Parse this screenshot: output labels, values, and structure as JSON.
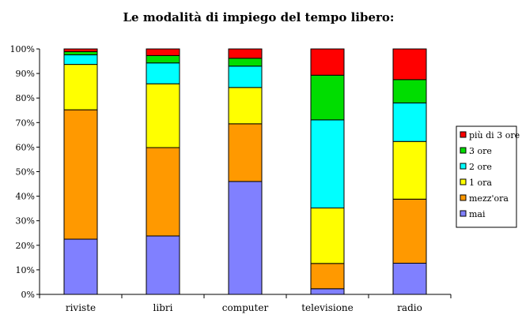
{
  "chart_data": {
    "type": "bar",
    "stacked": true,
    "percent": true,
    "title": "Le modalità di impiego del tempo libero:",
    "categories": [
      "riviste",
      "libri",
      "computer",
      "televisione",
      "radio"
    ],
    "ylim": [
      0,
      100
    ],
    "yticks": [
      "0%",
      "10%",
      "20%",
      "30%",
      "40%",
      "50%",
      "60%",
      "70%",
      "80%",
      "90%",
      "100%"
    ],
    "grid": false,
    "legend_position": "right",
    "series": [
      {
        "name": "mai",
        "color": "#8080ff",
        "values": [
          22.5,
          23.8,
          46.0,
          2.3,
          12.7
        ]
      },
      {
        "name": "mezz'ora",
        "color": "#ff9900",
        "values": [
          52.7,
          36.0,
          23.5,
          10.3,
          26.1
        ]
      },
      {
        "name": "1 ora",
        "color": "#ffff00",
        "values": [
          18.5,
          26.0,
          14.8,
          22.6,
          23.5
        ]
      },
      {
        "name": "2 ore",
        "color": "#00ffff",
        "values": [
          3.9,
          8.5,
          8.7,
          35.9,
          15.7
        ]
      },
      {
        "name": "3 ore",
        "color": "#00dd00",
        "values": [
          1.3,
          3.0,
          3.2,
          18.2,
          9.5
        ]
      },
      {
        "name": "più di 3 ore",
        "color": "#ff0000",
        "values": [
          1.1,
          2.7,
          3.8,
          10.7,
          12.5
        ]
      }
    ]
  }
}
